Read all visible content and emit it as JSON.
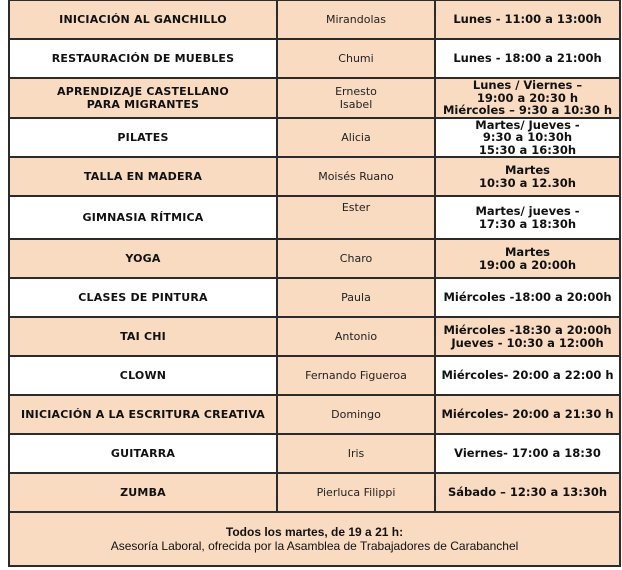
{
  "rows": [
    {
      "activity": "INICIACIÓN AL GANCHILLO",
      "teacher": [
        "Mirandolas"
      ],
      "schedule": [
        "Lunes - 11:00 a 13:00h"
      ]
    },
    {
      "activity": "RESTAURACIÓN DE MUEBLES",
      "teacher": [
        "Chumi"
      ],
      "schedule": [
        "Lunes - 18:00 a 21:00h"
      ]
    },
    {
      "activity": [
        "APRENDIZAJE CASTELLANO",
        "PARA MIGRANTES"
      ],
      "teacher": [
        "Ernesto",
        "Isabel"
      ],
      "schedule": [
        "Lunes / Viernes –",
        "19:00 a 20:30 h",
        "Miércoles – 9:30 a 10:30 h"
      ]
    },
    {
      "activity": "PILATES",
      "teacher": [
        "Alicia"
      ],
      "schedule": [
        "Martes/ Jueves -",
        "9:30 a 10:30h",
        "15:30 a 16:30h"
      ]
    },
    {
      "activity": "TALLA EN MADERA",
      "teacher": [
        "Moisés Ruano"
      ],
      "schedule": [
        "Martes",
        "10:30 a 12.30h"
      ]
    },
    {
      "activity": "GIMNASIA RÍTMICA",
      "teacher": [
        "Ester"
      ],
      "schedule": [
        "Martes/ jueves -",
        "17:30 a 18:30h"
      ]
    },
    {
      "activity": "YOGA",
      "teacher": [
        "Charo"
      ],
      "schedule": [
        "Martes",
        "19:00 a 20:00h"
      ]
    },
    {
      "activity": "CLASES DE PINTURA",
      "teacher": [
        "Paula"
      ],
      "schedule": [
        "Miércoles -18:00 a 20:00h"
      ]
    },
    {
      "activity": "TAI CHI",
      "teacher": [
        "Antonio"
      ],
      "schedule": [
        "Miércoles -18:30 a 20:00h",
        "Jueves - 10:30 a 12:00h"
      ]
    },
    {
      "activity": "CLOWN",
      "teacher": [
        "Fernando Figueroa"
      ],
      "schedule": [
        "Miércoles- 20:00 a 22:00 h"
      ]
    },
    {
      "activity": "INICIACIÓN A LA ESCRITURA CREATIVA",
      "teacher": [
        "Domingo"
      ],
      "schedule": [
        "Miércoles- 20:00 a 21:30 h"
      ]
    },
    {
      "activity": "GUITARRA",
      "teacher": [
        "Iris"
      ],
      "schedule": [
        "Viernes- 17:00 a 18:30"
      ]
    },
    {
      "activity": "ZUMBA",
      "teacher": [
        "Pierluca Filippi"
      ],
      "schedule": [
        "Sábado – 12:30 a 13:30h"
      ]
    }
  ],
  "footer": {
    "line1": "Todos los martes, de 19 a 21 h:",
    "line2": "Asesoría Laboral, ofrecida por la Asamblea de Trabajadores de Carabanchel"
  },
  "colors": {
    "peach": "#f9dbc2",
    "white": "#ffffff",
    "border": "#2b2b2b"
  }
}
